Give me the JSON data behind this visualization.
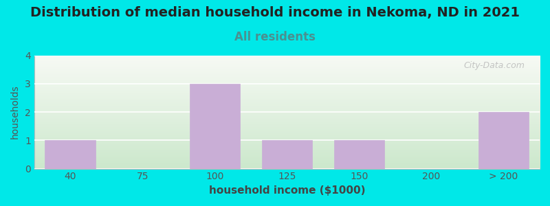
{
  "title": "Distribution of median household income in Nekoma, ND in 2021",
  "subtitle": "All residents",
  "xlabel": "household income ($1000)",
  "ylabel": "households",
  "categories": [
    "40",
    "75",
    "100",
    "125",
    "150",
    "200",
    "> 200"
  ],
  "values": [
    1,
    0,
    3,
    1,
    1,
    0,
    2
  ],
  "bar_color": "#c9aed6",
  "background_outer": "#00e8e8",
  "background_inner_top": "#f8f8f5",
  "background_inner_bottom": "#cce8cc",
  "ylim": [
    0,
    4
  ],
  "yticks": [
    0,
    1,
    2,
    3,
    4
  ],
  "title_fontsize": 14,
  "subtitle_fontsize": 12,
  "subtitle_color": "#4a9090",
  "watermark": "City-Data.com",
  "bar_width": 0.7
}
